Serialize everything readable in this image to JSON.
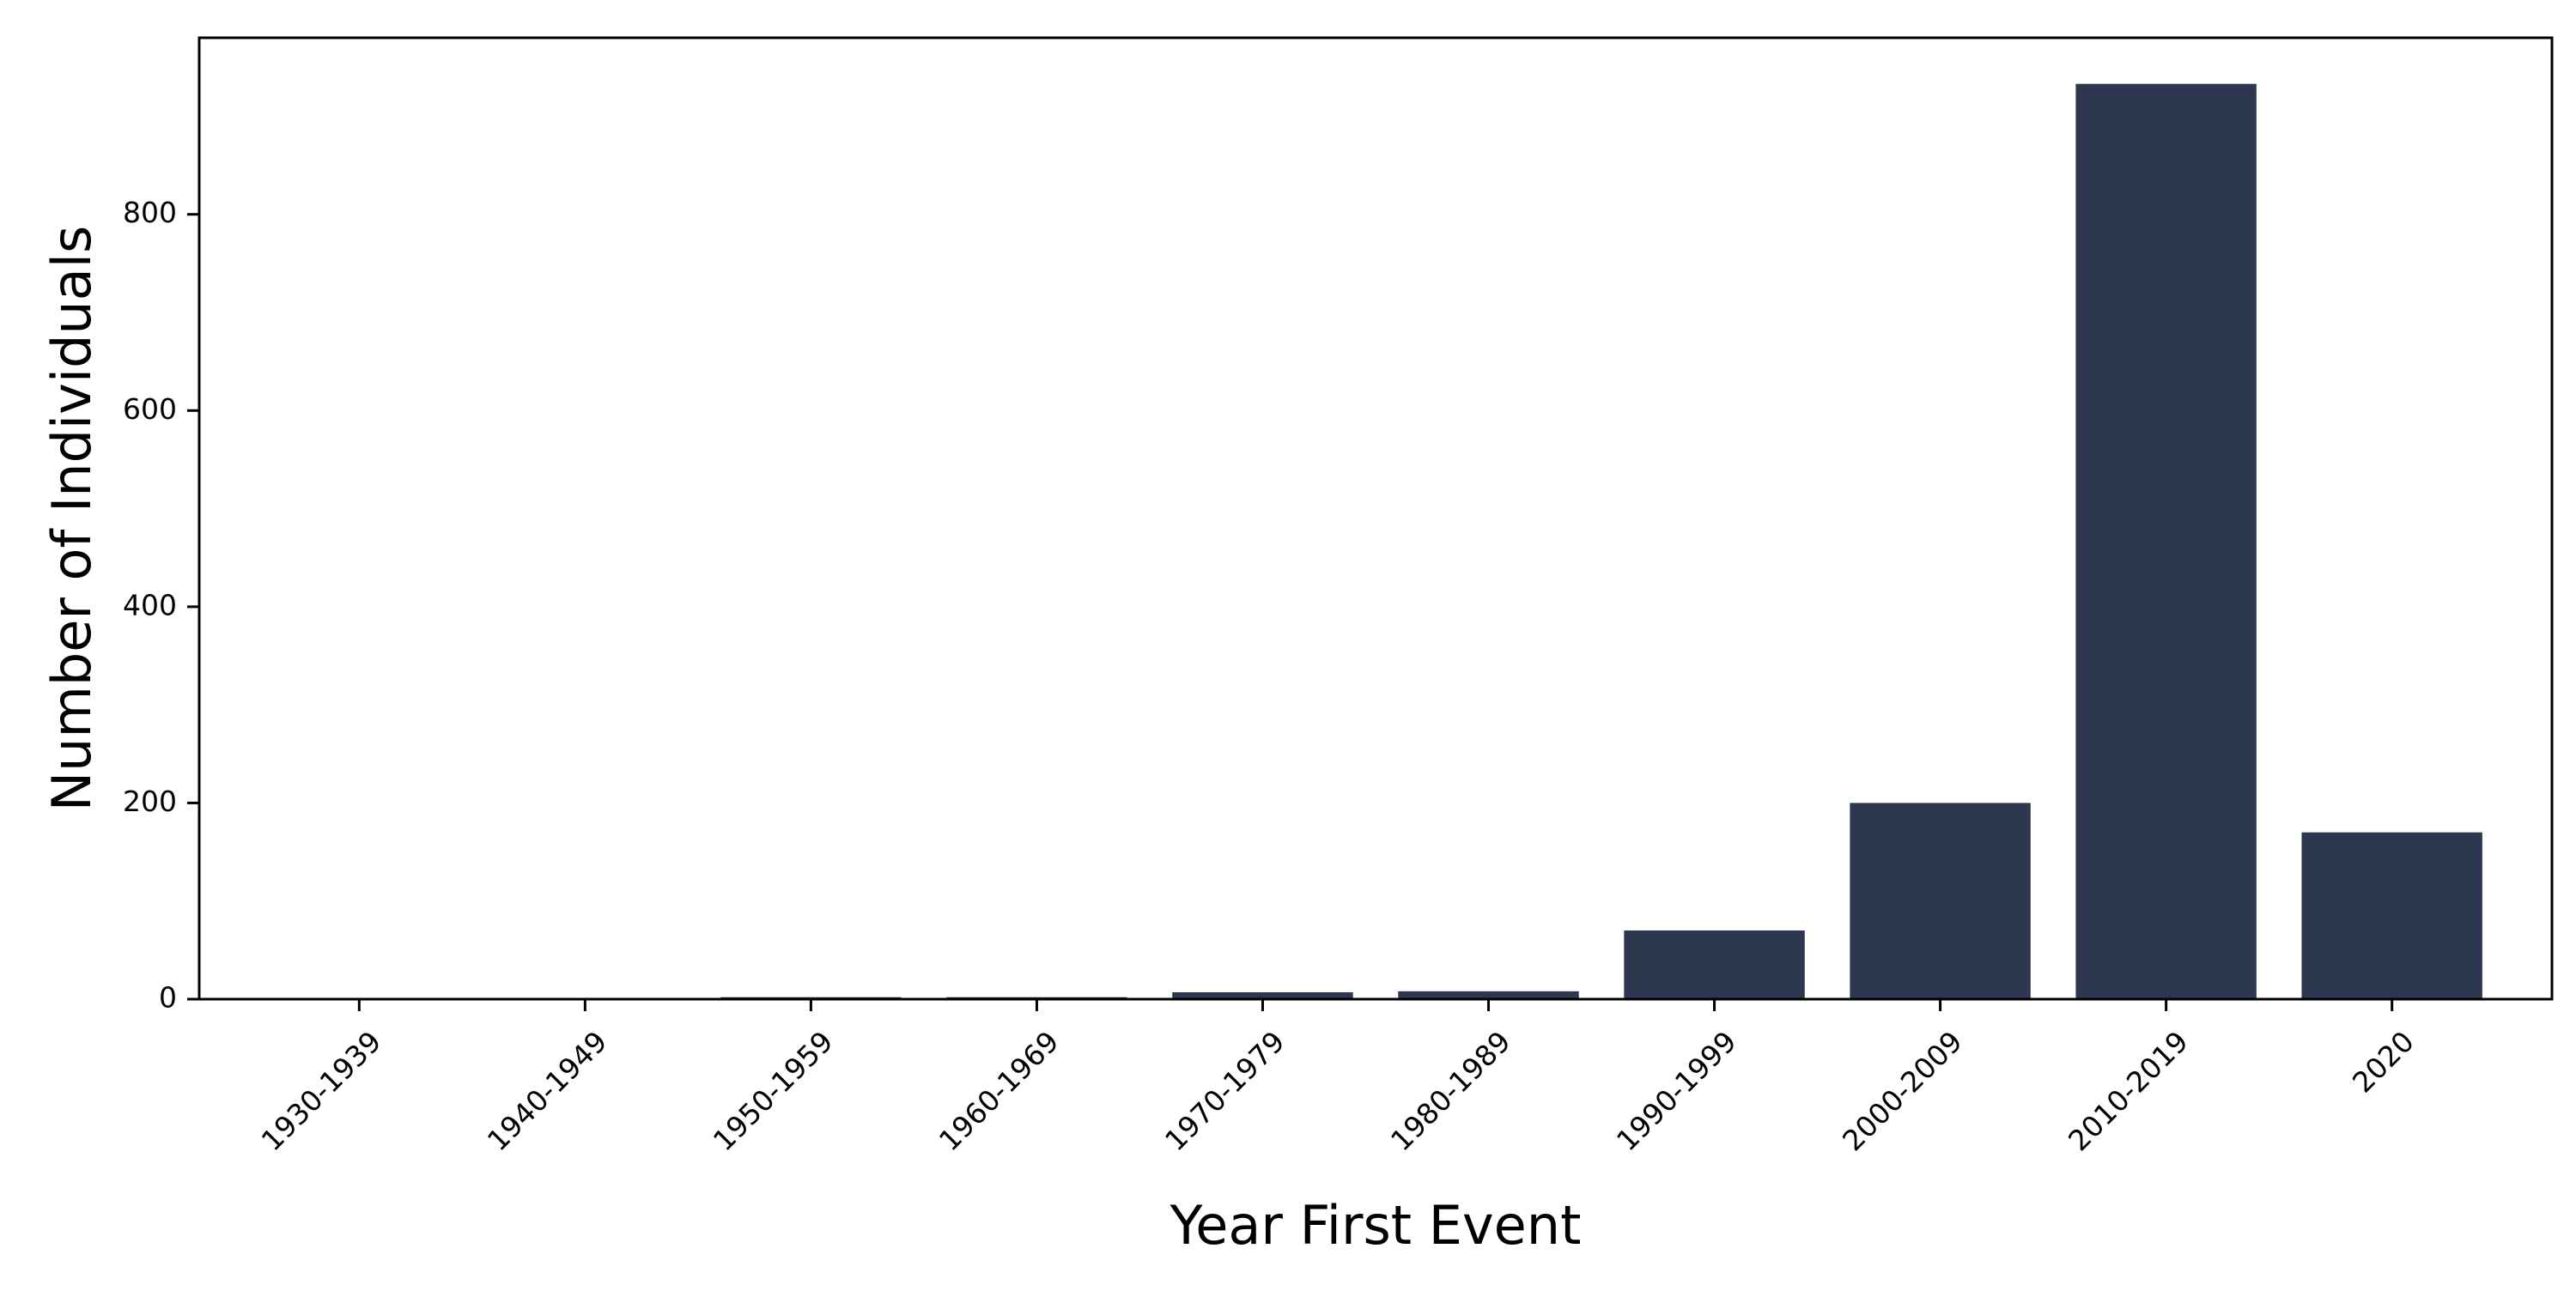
{
  "chart_data": {
    "type": "bar",
    "title": "",
    "xlabel": "Year First Event",
    "ylabel": "Number of Individuals",
    "categories": [
      "1930-1939",
      "1940-1949",
      "1950-1959",
      "1960-1969",
      "1970-1979",
      "1980-1989",
      "1990-1999",
      "2000-2009",
      "2010-2019",
      "2020"
    ],
    "values": [
      1,
      1,
      2,
      2,
      7,
      8,
      70,
      200,
      933,
      170
    ],
    "ylim": [
      0,
      980
    ],
    "yticks": [
      0,
      200,
      400,
      600,
      800
    ],
    "bar_color": "#2d3850",
    "grid": false,
    "legend": "none"
  }
}
